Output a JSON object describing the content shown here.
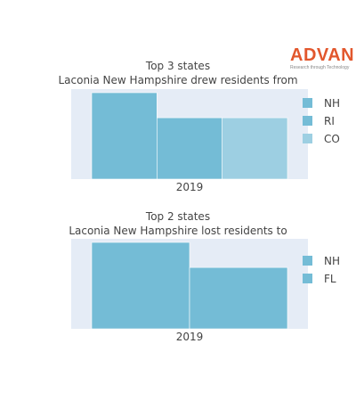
{
  "logo": {
    "brand": "ADVAN",
    "tagline": "Research through Technology"
  },
  "chart_data": [
    {
      "type": "bar",
      "title": "Top 3 states",
      "subtitle": "Laconia New Hampshire drew residents from",
      "categories": [
        "2019"
      ],
      "series": [
        {
          "name": "NH",
          "values": [
            1.0
          ],
          "color": "#74bcd6"
        },
        {
          "name": "RI",
          "values": [
            0.71
          ],
          "color": "#74bcd6"
        },
        {
          "name": "CO",
          "values": [
            0.71
          ],
          "color": "#9dcfe2"
        }
      ],
      "ylim": [
        0,
        1.0
      ],
      "grid": false,
      "legend": "right"
    },
    {
      "type": "bar",
      "title": "Top 2 states",
      "subtitle": "Laconia New Hampshire lost residents to",
      "categories": [
        "2019"
      ],
      "series": [
        {
          "name": "NH",
          "values": [
            1.0
          ],
          "color": "#74bcd6"
        },
        {
          "name": "FL",
          "values": [
            0.71
          ],
          "color": "#74bcd6"
        }
      ],
      "ylim": [
        0,
        1.0
      ],
      "grid": false,
      "legend": "right"
    }
  ]
}
